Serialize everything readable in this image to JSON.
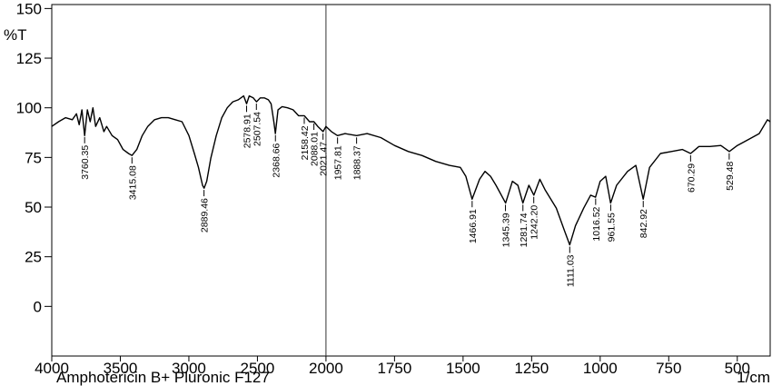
{
  "chart_data": {
    "type": "line",
    "title": "Amphotericin B+ Pluronic F127",
    "x_label": "1/cm",
    "y_label": "%T",
    "xlim": [
      4000,
      380
    ],
    "xticks": [
      4000,
      3500,
      3000,
      2500,
      2000,
      1750,
      1500,
      1250,
      1000,
      750,
      500
    ],
    "ylim": [
      -25,
      152
    ],
    "yticks": [
      0,
      25,
      50,
      75,
      100,
      125,
      150
    ],
    "color": "#000000",
    "x": [
      4000,
      3950,
      3900,
      3850,
      3820,
      3800,
      3780,
      3760,
      3740,
      3720,
      3700,
      3680,
      3650,
      3620,
      3600,
      3560,
      3520,
      3480,
      3440,
      3415,
      3380,
      3340,
      3300,
      3250,
      3200,
      3150,
      3100,
      3050,
      3000,
      2960,
      2930,
      2900,
      2889,
      2870,
      2840,
      2800,
      2760,
      2720,
      2680,
      2640,
      2600,
      2579,
      2560,
      2530,
      2507,
      2480,
      2450,
      2420,
      2400,
      2380,
      2369,
      2350,
      2320,
      2280,
      2240,
      2200,
      2158,
      2120,
      2088,
      2060,
      2021,
      2000,
      1980,
      1958,
      1930,
      1888,
      1850,
      1800,
      1750,
      1700,
      1650,
      1600,
      1550,
      1510,
      1490,
      1467,
      1440,
      1420,
      1400,
      1380,
      1345,
      1320,
      1300,
      1282,
      1260,
      1242,
      1220,
      1200,
      1160,
      1130,
      1111,
      1090,
      1060,
      1035,
      1017,
      1000,
      980,
      962,
      940,
      900,
      870,
      843,
      820,
      780,
      740,
      700,
      670,
      640,
      600,
      560,
      529,
      500,
      460,
      420,
      390,
      380
    ],
    "values": [
      90.6,
      93,
      95,
      94,
      97,
      91.5,
      99,
      86,
      99,
      93,
      100,
      90.6,
      95,
      88,
      90.6,
      86,
      84,
      79,
      77,
      76,
      79,
      86,
      90.6,
      94,
      95,
      95,
      94,
      93,
      86,
      77,
      70,
      61,
      59.5,
      63,
      74.6,
      86,
      95,
      100,
      103,
      104,
      106,
      102,
      106,
      105,
      103,
      105,
      105,
      104,
      102,
      93,
      87,
      99,
      100.6,
      100,
      99,
      96,
      96,
      93,
      93,
      90.6,
      88,
      90.6,
      88,
      86,
      87,
      86,
      87,
      85,
      81,
      78,
      76,
      73,
      71,
      70,
      65.5,
      54,
      64,
      68,
      65.5,
      61,
      52,
      63,
      61,
      52,
      61,
      56,
      64,
      58.5,
      49.5,
      38,
      31,
      40.6,
      49.5,
      56,
      55,
      63,
      65.5,
      52,
      61,
      68,
      71,
      54,
      70,
      77,
      78,
      79,
      77,
      80.5,
      80.5,
      81,
      78,
      81,
      84,
      87,
      94,
      93
    ],
    "peaks": [
      {
        "value": 3760.35,
        "label": "3760.35"
      },
      {
        "value": 3415.08,
        "label": "3415.08"
      },
      {
        "value": 2889.46,
        "label": "2889.46"
      },
      {
        "value": 2578.91,
        "label": "2578.91"
      },
      {
        "value": 2507.54,
        "label": "2507.54"
      },
      {
        "value": 2368.66,
        "label": "2368.66"
      },
      {
        "value": 2158.42,
        "label": "2158.42"
      },
      {
        "value": 2088.01,
        "label": "2088.01"
      },
      {
        "value": 2021.47,
        "label": "2021.47"
      },
      {
        "value": 1957.81,
        "label": "1957.81"
      },
      {
        "value": 1888.37,
        "label": "1888.37"
      },
      {
        "value": 1466.91,
        "label": "1466.91"
      },
      {
        "value": 1345.39,
        "label": "1345.39"
      },
      {
        "value": 1281.74,
        "label": "1281.74"
      },
      {
        "value": 1242.2,
        "label": "1242.20"
      },
      {
        "value": 1111.03,
        "label": "1111.03"
      },
      {
        "value": 1016.52,
        "label": "1016.52"
      },
      {
        "value": 961.55,
        "label": "961.55"
      },
      {
        "value": 842.92,
        "label": "842.92"
      },
      {
        "value": 670.29,
        "label": "670.29"
      },
      {
        "value": 529.48,
        "label": "529.48"
      }
    ]
  }
}
